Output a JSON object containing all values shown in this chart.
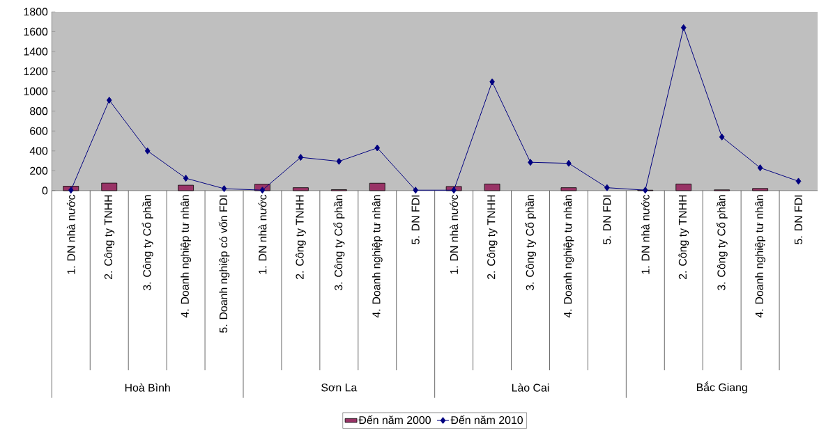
{
  "chart_data": {
    "type": "bar",
    "categories": [
      "1. DN nhà nước",
      "2. Công ty TNHH",
      "3. Công ty Cổ phần",
      "4. Doanh nghiệp tư nhân",
      "5. Doanh nghiệp có vốn FDI",
      "1. DN nhà nước",
      "2. Công ty TNHH",
      "3. Công ty Cổ phần",
      "4. Doanh nghiệp tư nhân",
      "5. DN FDI",
      "1. DN nhà nước",
      "2. Công ty TNHH",
      "3. Công ty Cổ phần",
      "4. Doanh nghiệp tư nhân",
      "5. DN FDI",
      "1. DN nhà nước",
      "2. Công ty TNHH",
      "3. Công ty Cổ phần",
      "4. Doanh nghiệp tư nhân",
      "5. DN FDI"
    ],
    "series": [
      {
        "name": "Đến năm 2000",
        "type": "bar",
        "color": "#993366",
        "values": [
          45,
          76,
          null,
          55,
          null,
          65,
          30,
          10,
          75,
          null,
          42,
          67,
          null,
          30,
          null,
          5,
          67,
          8,
          22,
          null
        ]
      },
      {
        "name": "Đến năm 2010",
        "type": "line",
        "color": "#000080",
        "values": [
          5,
          910,
          400,
          125,
          20,
          5,
          335,
          295,
          430,
          5,
          5,
          1095,
          285,
          275,
          30,
          5,
          1640,
          540,
          230,
          95
        ]
      }
    ],
    "annotations": [
      "Hoà Bình",
      "Sơn La",
      "Lào Cai",
      "Bắc Giang"
    ],
    "ylim": [
      0,
      1800
    ],
    "yticks": [
      0,
      200,
      400,
      600,
      800,
      1000,
      1200,
      1400,
      1600,
      1800
    ],
    "marker": "diamond",
    "legend": "bottom"
  }
}
